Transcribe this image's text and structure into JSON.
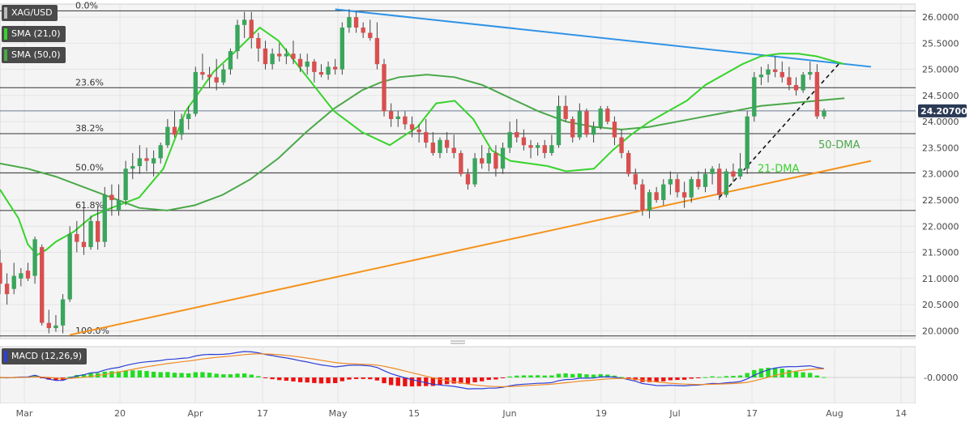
{
  "legend": {
    "symbol": "XAG/USD",
    "sma21": "SMA (21,0)",
    "sma50": "SMA (50,0)",
    "macd": "MACD (12,26,9)"
  },
  "colors": {
    "bull": "#3aa55c",
    "bear": "#d94f4f",
    "sma21": "#38d32c",
    "sma50": "#4aa84a",
    "blue_trend": "#2f93e6",
    "orange_trend": "#f5921b",
    "macd_line": "#2e3fd6",
    "signal_line": "#f08a24",
    "hist_pos": "#22dd22",
    "hist_neg": "#ee1111"
  },
  "price_axis": {
    "ticks": [
      "26.0000",
      "25.5000",
      "25.0000",
      "24.5000",
      "24.0000",
      "23.5000",
      "23.0000",
      "22.5000",
      "22.0000",
      "21.5000",
      "21.0000",
      "20.5000",
      "20.0000"
    ],
    "current": "24.20700"
  },
  "macd_axis": {
    "tick": "-0.0000"
  },
  "x_axis": {
    "ticks": [
      "Mar",
      "20",
      "Apr",
      "17",
      "May",
      "15",
      "Jun",
      "19",
      "Jul",
      "17",
      "Aug",
      "14"
    ]
  },
  "fib_labels": [
    "0.0%",
    "23.6%",
    "38.2%",
    "50.0%",
    "61.8%",
    "100.0%"
  ],
  "annotations": {
    "dma50": "50-DMA",
    "dma21": "21-DMA"
  },
  "chart_data": {
    "type": "candlestick",
    "title": "XAG/USD",
    "ylim": [
      19.85,
      26.25
    ],
    "current_price": 24.207,
    "fib_levels": [
      {
        "label": "0.0%",
        "value": 26.12
      },
      {
        "label": "23.6%",
        "value": 24.65
      },
      {
        "label": "38.2%",
        "value": 23.77
      },
      {
        "label": "50.0%",
        "value": 23.02
      },
      {
        "label": "61.8%",
        "value": 22.3
      },
      {
        "label": "100.0%",
        "value": 19.9
      }
    ],
    "candles": [
      [
        21.3,
        21.55,
        20.7,
        20.9
      ],
      [
        20.9,
        21.1,
        20.5,
        20.7
      ],
      [
        20.8,
        21.3,
        20.7,
        21.05
      ],
      [
        21.0,
        21.2,
        20.85,
        21.1
      ],
      [
        21.15,
        21.3,
        20.95,
        21.0
      ],
      [
        21.05,
        21.8,
        20.9,
        21.75
      ],
      [
        21.6,
        21.65,
        20.1,
        20.15
      ],
      [
        20.15,
        20.4,
        19.95,
        20.05
      ],
      [
        20.05,
        20.3,
        19.98,
        20.1
      ],
      [
        20.1,
        20.7,
        19.95,
        20.6
      ],
      [
        20.6,
        22.0,
        20.55,
        21.85
      ],
      [
        21.85,
        22.1,
        21.5,
        21.7
      ],
      [
        21.7,
        22.35,
        21.45,
        21.6
      ],
      [
        21.6,
        22.2,
        21.55,
        22.1
      ],
      [
        22.1,
        22.4,
        21.55,
        21.7
      ],
      [
        21.7,
        22.75,
        21.6,
        22.6
      ],
      [
        22.6,
        22.8,
        22.2,
        22.5
      ],
      [
        22.3,
        22.8,
        22.2,
        22.5
      ],
      [
        22.5,
        23.25,
        22.4,
        23.1
      ],
      [
        23.1,
        23.4,
        22.9,
        23.15
      ],
      [
        23.15,
        23.55,
        23.0,
        23.3
      ],
      [
        23.3,
        23.5,
        23.05,
        23.25
      ],
      [
        23.2,
        23.45,
        22.95,
        23.3
      ],
      [
        23.3,
        23.6,
        23.2,
        23.55
      ],
      [
        23.55,
        24.05,
        23.5,
        23.9
      ],
      [
        23.9,
        24.2,
        23.7,
        23.75
      ],
      [
        23.75,
        24.15,
        23.65,
        24.05
      ],
      [
        24.05,
        24.3,
        23.85,
        24.15
      ],
      [
        24.15,
        25.05,
        24.1,
        24.95
      ],
      [
        24.95,
        25.3,
        24.8,
        24.9
      ],
      [
        24.9,
        25.05,
        24.65,
        24.85
      ],
      [
        24.85,
        25.2,
        24.6,
        24.75
      ],
      [
        24.75,
        25.1,
        24.7,
        25.0
      ],
      [
        25.0,
        25.4,
        24.9,
        25.35
      ],
      [
        25.35,
        25.95,
        25.2,
        25.85
      ],
      [
        25.85,
        26.1,
        25.6,
        25.95
      ],
      [
        25.95,
        26.1,
        25.4,
        25.6
      ],
      [
        25.6,
        25.7,
        25.15,
        25.4
      ],
      [
        25.4,
        25.55,
        25.0,
        25.1
      ],
      [
        25.1,
        25.4,
        25.0,
        25.3
      ],
      [
        25.3,
        25.5,
        25.15,
        25.25
      ],
      [
        25.25,
        25.4,
        25.1,
        25.3
      ],
      [
        25.3,
        25.55,
        25.1,
        25.2
      ],
      [
        25.2,
        25.3,
        24.95,
        25.05
      ],
      [
        25.05,
        25.3,
        24.9,
        25.15
      ],
      [
        25.15,
        25.2,
        24.75,
        24.95
      ],
      [
        24.95,
        25.1,
        24.85,
        24.9
      ],
      [
        24.9,
        25.15,
        24.8,
        25.05
      ],
      [
        25.05,
        25.2,
        24.9,
        25.0
      ],
      [
        25.0,
        25.9,
        24.9,
        25.8
      ],
      [
        25.8,
        26.15,
        25.7,
        26.0
      ],
      [
        26.0,
        26.1,
        25.7,
        25.8
      ],
      [
        25.8,
        25.9,
        25.6,
        25.7
      ],
      [
        25.7,
        25.95,
        25.55,
        25.6
      ],
      [
        25.6,
        25.9,
        25.0,
        25.1
      ],
      [
        25.1,
        25.2,
        24.1,
        24.2
      ],
      [
        24.2,
        24.35,
        23.9,
        24.05
      ],
      [
        24.05,
        24.2,
        23.9,
        24.1
      ],
      [
        24.1,
        24.2,
        23.85,
        23.95
      ],
      [
        23.95,
        24.1,
        23.7,
        23.85
      ],
      [
        23.85,
        23.95,
        23.6,
        23.8
      ],
      [
        23.8,
        24.05,
        23.5,
        23.6
      ],
      [
        23.6,
        23.8,
        23.35,
        23.4
      ],
      [
        23.4,
        23.7,
        23.3,
        23.65
      ],
      [
        23.65,
        23.8,
        23.4,
        23.5
      ],
      [
        23.5,
        23.75,
        23.3,
        23.4
      ],
      [
        23.4,
        23.45,
        22.95,
        23.0
      ],
      [
        23.0,
        23.1,
        22.7,
        22.8
      ],
      [
        22.8,
        23.4,
        22.75,
        23.3
      ],
      [
        23.3,
        23.55,
        23.1,
        23.2
      ],
      [
        23.2,
        23.5,
        23.05,
        23.4
      ],
      [
        23.4,
        23.55,
        22.95,
        23.1
      ],
      [
        23.1,
        23.6,
        23.0,
        23.5
      ],
      [
        23.5,
        24.0,
        23.4,
        23.8
      ],
      [
        23.8,
        24.05,
        23.6,
        23.7
      ],
      [
        23.7,
        23.85,
        23.45,
        23.55
      ],
      [
        23.55,
        23.65,
        23.3,
        23.5
      ],
      [
        23.5,
        23.6,
        23.35,
        23.55
      ],
      [
        23.55,
        23.65,
        23.3,
        23.4
      ],
      [
        23.4,
        23.75,
        23.35,
        23.55
      ],
      [
        23.55,
        24.5,
        23.5,
        24.3
      ],
      [
        24.3,
        24.5,
        24.0,
        24.05
      ],
      [
        24.05,
        24.1,
        23.6,
        23.7
      ],
      [
        23.7,
        24.35,
        23.65,
        24.2
      ],
      [
        24.2,
        24.25,
        23.7,
        23.75
      ],
      [
        23.75,
        24.0,
        23.6,
        23.9
      ],
      [
        23.9,
        24.3,
        23.85,
        24.25
      ],
      [
        24.25,
        24.3,
        23.95,
        24.0
      ],
      [
        24.0,
        24.1,
        23.55,
        23.7
      ],
      [
        23.7,
        23.85,
        23.3,
        23.4
      ],
      [
        23.4,
        23.45,
        22.95,
        23.0
      ],
      [
        23.0,
        23.1,
        22.7,
        22.8
      ],
      [
        22.8,
        22.9,
        22.2,
        22.3
      ],
      [
        22.3,
        22.7,
        22.15,
        22.65
      ],
      [
        22.65,
        22.75,
        22.45,
        22.5
      ],
      [
        22.5,
        22.9,
        22.4,
        22.8
      ],
      [
        22.8,
        23.05,
        22.6,
        22.9
      ],
      [
        22.9,
        23.0,
        22.55,
        22.65
      ],
      [
        22.65,
        22.85,
        22.35,
        22.55
      ],
      [
        22.55,
        22.95,
        22.45,
        22.9
      ],
      [
        22.9,
        23.05,
        22.7,
        22.75
      ],
      [
        22.75,
        23.1,
        22.65,
        23.0
      ],
      [
        23.0,
        23.15,
        22.8,
        23.1
      ],
      [
        23.1,
        23.2,
        22.5,
        22.6
      ],
      [
        22.6,
        23.1,
        22.55,
        23.05
      ],
      [
        23.05,
        23.2,
        22.85,
        22.95
      ],
      [
        22.95,
        23.4,
        22.9,
        23.1
      ],
      [
        23.1,
        24.2,
        23.0,
        24.1
      ],
      [
        24.1,
        24.95,
        24.0,
        24.85
      ],
      [
        24.85,
        25.05,
        24.7,
        24.9
      ],
      [
        24.9,
        25.1,
        24.75,
        25.0
      ],
      [
        25.0,
        25.25,
        24.85,
        24.95
      ],
      [
        24.95,
        25.15,
        24.75,
        24.85
      ],
      [
        24.85,
        25.05,
        24.6,
        24.7
      ],
      [
        24.7,
        24.85,
        24.5,
        24.6
      ],
      [
        24.6,
        24.95,
        24.55,
        24.9
      ],
      [
        24.9,
        25.15,
        24.8,
        24.95
      ],
      [
        24.95,
        25.1,
        24.05,
        24.1
      ],
      [
        24.1,
        24.25,
        24.05,
        24.207
      ]
    ],
    "series": [],
    "sma21": [
      [
        0,
        22.7
      ],
      [
        10,
        22.15
      ],
      [
        15,
        21.65
      ],
      [
        20,
        21.45
      ],
      [
        25,
        21.55
      ],
      [
        30,
        21.7
      ],
      [
        40,
        21.9
      ],
      [
        50,
        22.2
      ],
      [
        60,
        22.35
      ],
      [
        75,
        22.55
      ],
      [
        88,
        23.1
      ],
      [
        100,
        24.2
      ],
      [
        115,
        24.95
      ],
      [
        130,
        25.45
      ],
      [
        140,
        25.8
      ],
      [
        150,
        25.55
      ],
      [
        160,
        25.1
      ],
      [
        170,
        24.65
      ],
      [
        180,
        24.2
      ],
      [
        195,
        23.8
      ],
      [
        210,
        23.55
      ],
      [
        225,
        23.9
      ],
      [
        235,
        24.35
      ],
      [
        245,
        24.4
      ],
      [
        255,
        24.05
      ],
      [
        265,
        23.45
      ],
      [
        275,
        23.25
      ],
      [
        285,
        23.2
      ],
      [
        295,
        23.15
      ],
      [
        305,
        23.05
      ],
      [
        320,
        23.1
      ],
      [
        330,
        23.45
      ],
      [
        340,
        23.75
      ],
      [
        350,
        24.0
      ],
      [
        360,
        24.2
      ],
      [
        370,
        24.4
      ],
      [
        380,
        24.7
      ],
      [
        390,
        24.9
      ],
      [
        400,
        25.1
      ],
      [
        410,
        25.25
      ],
      [
        420,
        25.3
      ],
      [
        430,
        25.3
      ],
      [
        440,
        25.25
      ],
      [
        450,
        25.15
      ],
      [
        455,
        25.1
      ]
    ],
    "sma50": [
      [
        0,
        23.2
      ],
      [
        15,
        23.1
      ],
      [
        30,
        22.95
      ],
      [
        45,
        22.75
      ],
      [
        60,
        22.55
      ],
      [
        75,
        22.35
      ],
      [
        90,
        22.3
      ],
      [
        105,
        22.4
      ],
      [
        120,
        22.6
      ],
      [
        135,
        22.9
      ],
      [
        150,
        23.3
      ],
      [
        165,
        23.8
      ],
      [
        180,
        24.25
      ],
      [
        195,
        24.6
      ],
      [
        205,
        24.75
      ],
      [
        215,
        24.85
      ],
      [
        230,
        24.9
      ],
      [
        245,
        24.85
      ],
      [
        260,
        24.7
      ],
      [
        275,
        24.45
      ],
      [
        290,
        24.2
      ],
      [
        305,
        24.0
      ],
      [
        320,
        23.9
      ],
      [
        335,
        23.85
      ],
      [
        350,
        23.9
      ],
      [
        365,
        24.0
      ],
      [
        380,
        24.1
      ],
      [
        395,
        24.2
      ],
      [
        410,
        24.3
      ],
      [
        425,
        24.35
      ],
      [
        440,
        24.4
      ],
      [
        455,
        24.45
      ]
    ],
    "macd": {
      "ylim": [
        -1,
        1
      ]
    }
  }
}
